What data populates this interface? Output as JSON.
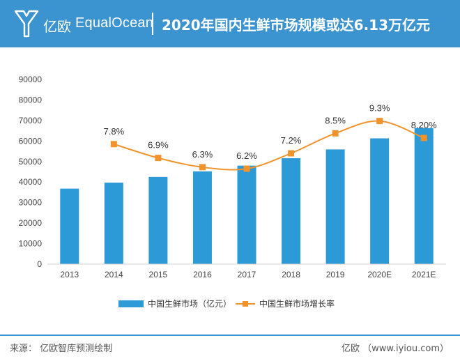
{
  "header": {
    "brand_cn": "亿欧",
    "brand_en": "EqualOcean",
    "title": "2020年国内生鲜市场规模或达6.13万亿元",
    "background_color": "#3b93cf",
    "logo_icon": "equalocean-y-logo-icon"
  },
  "chart_data": {
    "type": "bar",
    "categories": [
      "2013",
      "2014",
      "2015",
      "2016",
      "2017",
      "2018",
      "2019",
      "2020E",
      "2021E"
    ],
    "series": [
      {
        "name": "中国生鲜市场（亿元）",
        "type": "bar",
        "color": "#2b9ad6",
        "values": [
          36800,
          39700,
          42500,
          45200,
          48000,
          51600,
          55900,
          61300,
          66300
        ]
      },
      {
        "name": "中国生鲜市场增长率",
        "type": "line",
        "color": "#f0932b",
        "values": [
          null,
          7.8,
          6.9,
          6.3,
          6.2,
          7.2,
          8.5,
          9.3,
          8.2
        ],
        "labels": [
          "",
          "7.8%",
          "6.9%",
          "6.3%",
          "6.2%",
          "7.2%",
          "8.5%",
          "9.3%",
          "8.20%"
        ]
      }
    ],
    "ylim": [
      0,
      90000
    ],
    "yticks": [
      0,
      10000,
      20000,
      30000,
      40000,
      50000,
      60000,
      70000,
      80000,
      90000
    ],
    "y2lim": [
      0,
      12
    ],
    "grid": false,
    "legend_position": "bottom"
  },
  "footer": {
    "source": "来源：  亿欧智库预测绘制",
    "site": "亿欧  （www.iyiou.com）"
  }
}
